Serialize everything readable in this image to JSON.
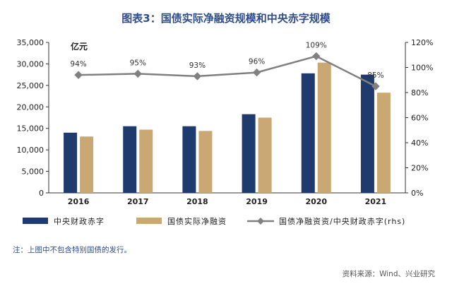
{
  "title": "图表3：国债实际净融资规模和中央赤字规模",
  "unit_label": "亿元",
  "note": "注：上图中不包含特别国债的发行。",
  "source": "资料来源：Wind、兴业研究",
  "colors": {
    "title": "#2e4d8c",
    "deficit_bar": "#1f3b6e",
    "financing_bar": "#c9a874",
    "ratio_line": "#808080",
    "axis": "#333333"
  },
  "chart_data": {
    "type": "bar",
    "categories": [
      "2016",
      "2017",
      "2018",
      "2019",
      "2020",
      "2021"
    ],
    "series": [
      {
        "name": "中央财政赤字",
        "type": "bar",
        "axis": "left",
        "values": [
          14000,
          15500,
          15500,
          18300,
          27800,
          27500
        ]
      },
      {
        "name": "国债实际净融资",
        "type": "bar",
        "axis": "left",
        "values": [
          13100,
          14700,
          14400,
          17500,
          30300,
          23300
        ]
      },
      {
        "name": "国债净融资资/中央财政赤字(rhs)",
        "type": "line",
        "axis": "right",
        "values": [
          94,
          95,
          93,
          96,
          109,
          85
        ],
        "labels": [
          "94%",
          "95%",
          "93%",
          "96%",
          "109%",
          "85%"
        ]
      }
    ],
    "ylim": [
      0,
      35000
    ],
    "yticks": [
      "0",
      "5,000",
      "10,000",
      "15,000",
      "20,000",
      "25,000",
      "30,000",
      "35,000"
    ],
    "y2lim": [
      0,
      120
    ],
    "y2ticks": [
      "0%",
      "20%",
      "40%",
      "60%",
      "80%",
      "100%",
      "120%"
    ],
    "legend_position": "bottom",
    "grid": false
  }
}
